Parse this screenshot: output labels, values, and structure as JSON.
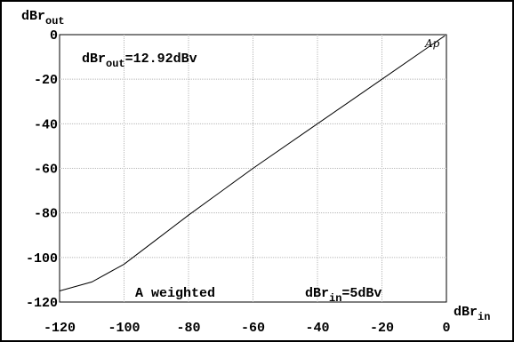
{
  "chart_data": {
    "type": "line",
    "y_axis_label": {
      "main": "dBr",
      "sub": "out"
    },
    "x_axis_label": {
      "main": "dBr",
      "sub": "in"
    },
    "xlim": [
      -120,
      0
    ],
    "ylim": [
      -120,
      0
    ],
    "x_ticks": [
      "-120",
      "-100",
      "-80",
      "-60",
      "-40",
      "-20",
      "0"
    ],
    "y_ticks": [
      "0",
      "-20",
      "-40",
      "-60",
      "-80",
      "-100",
      "-120"
    ],
    "grid": true,
    "series": [
      {
        "points": [
          [
            -120,
            -115
          ],
          [
            -110,
            -111
          ],
          [
            -100,
            -103
          ],
          [
            -90,
            -92
          ],
          [
            -80,
            -81
          ],
          [
            -60,
            -60
          ],
          [
            -40,
            -40
          ],
          [
            -20,
            -20
          ],
          [
            -5,
            -5
          ],
          [
            -0.5,
            -0.5
          ]
        ]
      }
    ],
    "annotations": {
      "ref_out": {
        "main": "dBr",
        "sub": "out",
        "rest": "=12.92dBv"
      },
      "weighting": "A weighted",
      "ref_in": {
        "main": "dBr",
        "sub": "in",
        "rest": "=5dBv"
      },
      "marker": "Ap"
    }
  }
}
